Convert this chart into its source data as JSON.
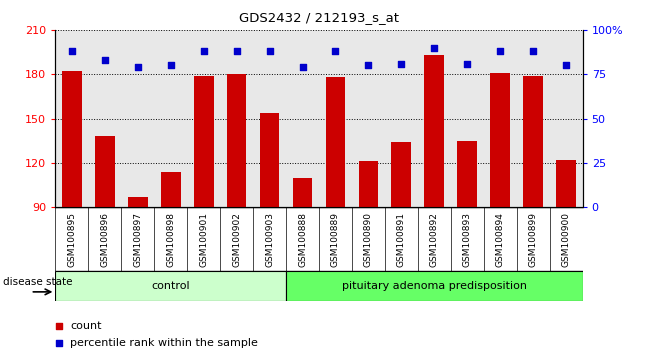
{
  "title": "GDS2432 / 212193_s_at",
  "samples": [
    "GSM100895",
    "GSM100896",
    "GSM100897",
    "GSM100898",
    "GSM100901",
    "GSM100902",
    "GSM100903",
    "GSM100888",
    "GSM100889",
    "GSM100890",
    "GSM100891",
    "GSM100892",
    "GSM100893",
    "GSM100894",
    "GSM100899",
    "GSM100900"
  ],
  "counts": [
    182,
    138,
    97,
    114,
    179,
    180,
    154,
    110,
    178,
    121,
    134,
    193,
    135,
    181,
    179,
    122
  ],
  "percentiles": [
    88,
    83,
    79,
    80,
    88,
    88,
    88,
    79,
    88,
    80,
    81,
    90,
    81,
    88,
    88,
    80
  ],
  "groups": [
    {
      "label": "control",
      "start": 0,
      "end": 7,
      "color": "#ccffcc"
    },
    {
      "label": "pituitary adenoma predisposition",
      "start": 7,
      "end": 16,
      "color": "#66ff66"
    }
  ],
  "ylim_left": [
    90,
    210
  ],
  "ylim_right": [
    0,
    100
  ],
  "yticks_left": [
    90,
    120,
    150,
    180,
    210
  ],
  "yticks_right": [
    0,
    25,
    50,
    75,
    100
  ],
  "bar_color": "#cc0000",
  "dot_color": "#0000cc",
  "plot_bg": "#e8e8e8",
  "tick_bg": "#c8c8c8",
  "label_count": "count",
  "label_percentile": "percentile rank within the sample",
  "disease_state_label": "disease state",
  "n_control": 7,
  "n_total": 16
}
